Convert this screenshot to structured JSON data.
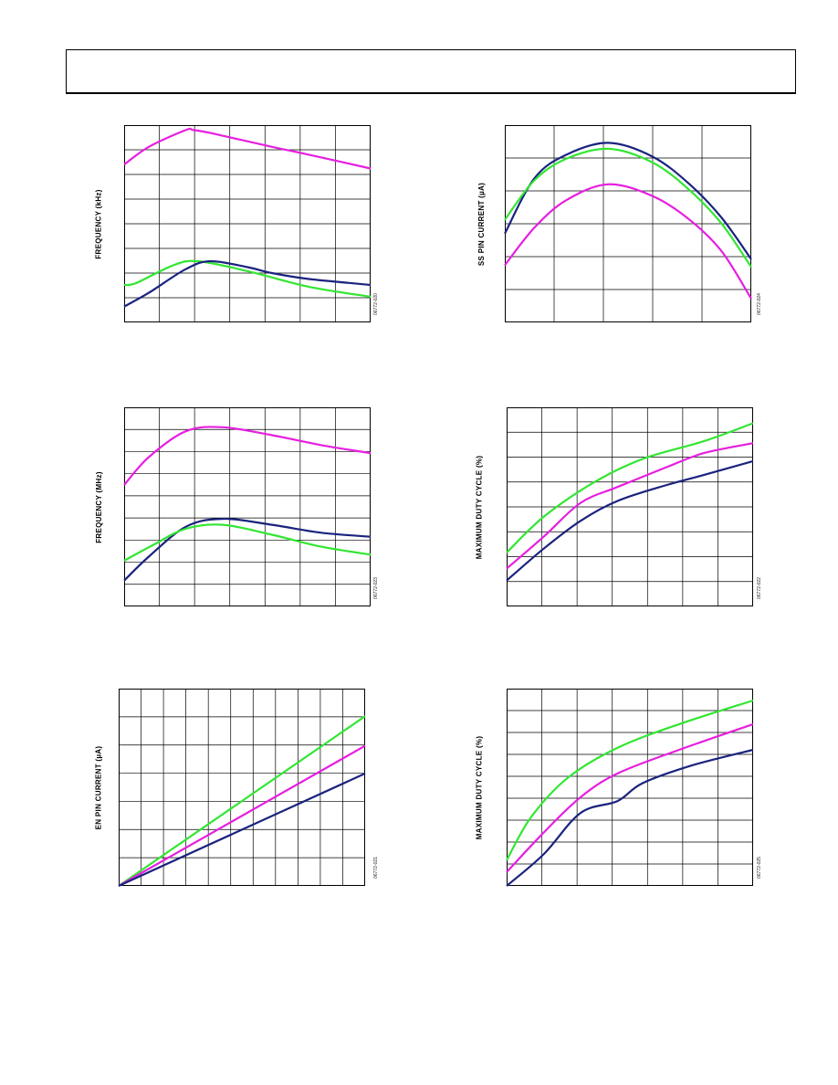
{
  "colors": {
    "navy": "#1a237e",
    "magenta": "#e61fe0",
    "green": "#32e632",
    "grid": "#000000"
  },
  "chart_data": [
    {
      "type": "line",
      "ylabel": "FREQUENCY (kHz)",
      "figure_id": "06772-020",
      "grid": true,
      "series": [
        {
          "color": "magenta",
          "points": [
            [
              0,
              0.8
            ],
            [
              0.1,
              0.89
            ],
            [
              0.25,
              0.975
            ],
            [
              0.28,
              0.975
            ],
            [
              0.35,
              0.96
            ],
            [
              0.6,
              0.89
            ],
            [
              0.75,
              0.85
            ],
            [
              1.0,
              0.78
            ]
          ]
        },
        {
          "color": "green",
          "points": [
            [
              0,
              0.19
            ],
            [
              0.05,
              0.2
            ],
            [
              0.2,
              0.29
            ],
            [
              0.3,
              0.31
            ],
            [
              0.5,
              0.26
            ],
            [
              0.75,
              0.18
            ],
            [
              1.0,
              0.13
            ]
          ]
        },
        {
          "color": "navy",
          "points": [
            [
              0,
              0.08
            ],
            [
              0.1,
              0.15
            ],
            [
              0.25,
              0.27
            ],
            [
              0.35,
              0.31
            ],
            [
              0.5,
              0.28
            ],
            [
              0.6,
              0.25
            ],
            [
              0.75,
              0.22
            ],
            [
              1.0,
              0.19
            ]
          ]
        }
      ]
    },
    {
      "type": "line",
      "ylabel": "SS PIN CURRENT (µA)",
      "figure_id": "06772-024",
      "grid": true,
      "series": [
        {
          "color": "navy",
          "points": [
            [
              0,
              0.45
            ],
            [
              0.12,
              0.73
            ],
            [
              0.25,
              0.85
            ],
            [
              0.42,
              0.91
            ],
            [
              0.6,
              0.84
            ],
            [
              0.75,
              0.7
            ],
            [
              0.88,
              0.53
            ],
            [
              1.0,
              0.32
            ]
          ]
        },
        {
          "color": "green",
          "points": [
            [
              0,
              0.52
            ],
            [
              0.12,
              0.72
            ],
            [
              0.25,
              0.83
            ],
            [
              0.42,
              0.88
            ],
            [
              0.6,
              0.81
            ],
            [
              0.75,
              0.67
            ],
            [
              0.88,
              0.5
            ],
            [
              1.0,
              0.28
            ]
          ]
        },
        {
          "color": "magenta",
          "points": [
            [
              0,
              0.29
            ],
            [
              0.12,
              0.48
            ],
            [
              0.25,
              0.62
            ],
            [
              0.42,
              0.7
            ],
            [
              0.6,
              0.64
            ],
            [
              0.75,
              0.52
            ],
            [
              0.88,
              0.36
            ],
            [
              1.0,
              0.12
            ]
          ]
        }
      ]
    },
    {
      "type": "line",
      "ylabel": "FREQUENCY (MHz)",
      "figure_id": "06772-023",
      "grid": true,
      "series": [
        {
          "color": "magenta",
          "points": [
            [
              0,
              0.61
            ],
            [
              0.1,
              0.75
            ],
            [
              0.25,
              0.88
            ],
            [
              0.4,
              0.9
            ],
            [
              0.6,
              0.86
            ],
            [
              0.8,
              0.81
            ],
            [
              1.0,
              0.77
            ]
          ]
        },
        {
          "color": "navy",
          "points": [
            [
              0,
              0.13
            ],
            [
              0.1,
              0.25
            ],
            [
              0.25,
              0.4
            ],
            [
              0.4,
              0.44
            ],
            [
              0.6,
              0.41
            ],
            [
              0.8,
              0.37
            ],
            [
              1.0,
              0.35
            ]
          ]
        },
        {
          "color": "green",
          "points": [
            [
              0,
              0.23
            ],
            [
              0.12,
              0.31
            ],
            [
              0.25,
              0.39
            ],
            [
              0.4,
              0.41
            ],
            [
              0.6,
              0.36
            ],
            [
              0.8,
              0.3
            ],
            [
              1.0,
              0.26
            ]
          ]
        }
      ]
    },
    {
      "type": "line",
      "ylabel": "MAXIMUM DUTY CYCLE (%)",
      "figure_id": "06772-022",
      "grid": true,
      "series": [
        {
          "color": "green",
          "points": [
            [
              0,
              0.27
            ],
            [
              0.15,
              0.45
            ],
            [
              0.35,
              0.62
            ],
            [
              0.55,
              0.74
            ],
            [
              0.8,
              0.83
            ],
            [
              1.0,
              0.92
            ]
          ]
        },
        {
          "color": "magenta",
          "points": [
            [
              0,
              0.19
            ],
            [
              0.15,
              0.35
            ],
            [
              0.3,
              0.52
            ],
            [
              0.45,
              0.6
            ],
            [
              0.65,
              0.7
            ],
            [
              0.8,
              0.77
            ],
            [
              1.0,
              0.82
            ]
          ]
        },
        {
          "color": "navy",
          "points": [
            [
              0,
              0.13
            ],
            [
              0.15,
              0.29
            ],
            [
              0.3,
              0.43
            ],
            [
              0.45,
              0.53
            ],
            [
              0.65,
              0.61
            ],
            [
              0.8,
              0.66
            ],
            [
              1.0,
              0.73
            ]
          ]
        }
      ]
    },
    {
      "type": "line",
      "ylabel": "EN PIN CURRENT (µA)",
      "figure_id": "06772-021",
      "grid": true,
      "series": [
        {
          "color": "green",
          "points": [
            [
              0,
              0
            ],
            [
              1.0,
              0.86
            ]
          ]
        },
        {
          "color": "magenta",
          "points": [
            [
              0,
              0
            ],
            [
              1.0,
              0.71
            ]
          ]
        },
        {
          "color": "navy",
          "points": [
            [
              0,
              0
            ],
            [
              1.0,
              0.57
            ]
          ]
        }
      ]
    },
    {
      "type": "line",
      "ylabel": "MAXIMUM DUTY CYCLE (%)",
      "figure_id": "06772-025",
      "grid": true,
      "series": [
        {
          "color": "green",
          "points": [
            [
              0,
              0.13
            ],
            [
              0.1,
              0.35
            ],
            [
              0.25,
              0.55
            ],
            [
              0.45,
              0.7
            ],
            [
              0.7,
              0.82
            ],
            [
              1.0,
              0.94
            ]
          ]
        },
        {
          "color": "magenta",
          "points": [
            [
              0,
              0.07
            ],
            [
              0.15,
              0.27
            ],
            [
              0.3,
              0.45
            ],
            [
              0.45,
              0.57
            ],
            [
              0.7,
              0.69
            ],
            [
              1.0,
              0.82
            ]
          ]
        },
        {
          "color": "navy",
          "points": [
            [
              0,
              0
            ],
            [
              0.15,
              0.16
            ],
            [
              0.3,
              0.37
            ],
            [
              0.45,
              0.43
            ],
            [
              0.55,
              0.52
            ],
            [
              0.75,
              0.61
            ],
            [
              1.0,
              0.69
            ]
          ]
        }
      ]
    }
  ]
}
